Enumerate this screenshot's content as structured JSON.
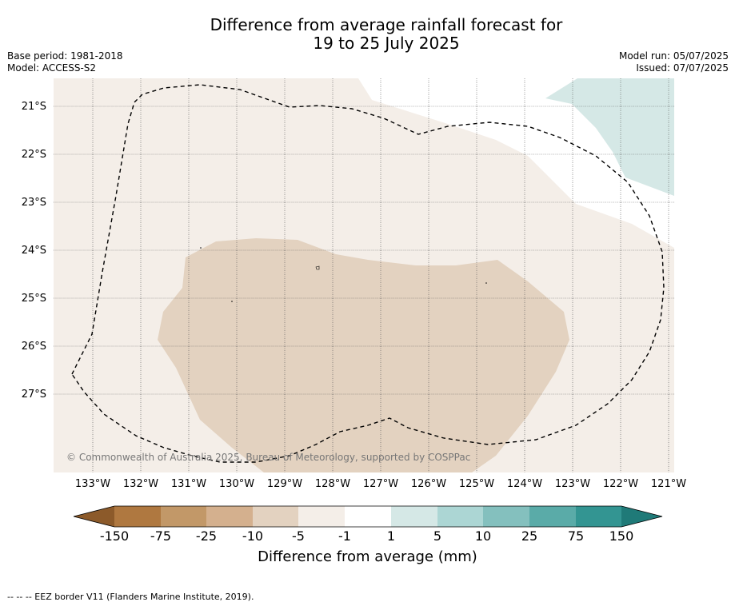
{
  "title": {
    "line1": "Difference from average rainfall forecast for",
    "line2": "19 to 25 July 2025"
  },
  "meta_left": {
    "base_period": "Base period: 1981-2018",
    "model": "Model: ACCESS-S2"
  },
  "meta_right": {
    "model_run": "Model run: 05/07/2025",
    "issued": "Issued: 07/07/2025"
  },
  "map": {
    "lat_labels": [
      "21°S",
      "22°S",
      "23°S",
      "24°S",
      "25°S",
      "26°S",
      "27°S"
    ],
    "lon_labels": [
      "133°W",
      "132°W",
      "131°W",
      "130°W",
      "129°W",
      "128°W",
      "127°W",
      "126°W",
      "125°W",
      "124°W",
      "123°W",
      "122°W",
      "121°W"
    ],
    "copyright": "© Commonwealth of Australia 2025, Bureau of Meteorology, supported by COSPPac",
    "colors": {
      "neg_1_5": "#f4eee8",
      "neg_5_10": "#e3d2c0",
      "pos_1_5": "#d5e8e6",
      "eez_border": "#000000"
    }
  },
  "colorbar": {
    "ticks": [
      "-150",
      "-75",
      "-25",
      "-10",
      "-5",
      "-1",
      "1",
      "5",
      "10",
      "25",
      "75",
      "150"
    ],
    "colors": [
      "#8c5a2a",
      "#af7840",
      "#c29868",
      "#d4b08e",
      "#e3d2c0",
      "#f4eee8",
      "#ffffff",
      "#d5e8e6",
      "#acd6d4",
      "#84c0be",
      "#5aaba8",
      "#339592",
      "#1f7a78"
    ],
    "label": "Difference from average (mm)"
  },
  "footnote": "--  --  -- EEZ border V11 (Flanders Marine Institute, 2019)."
}
